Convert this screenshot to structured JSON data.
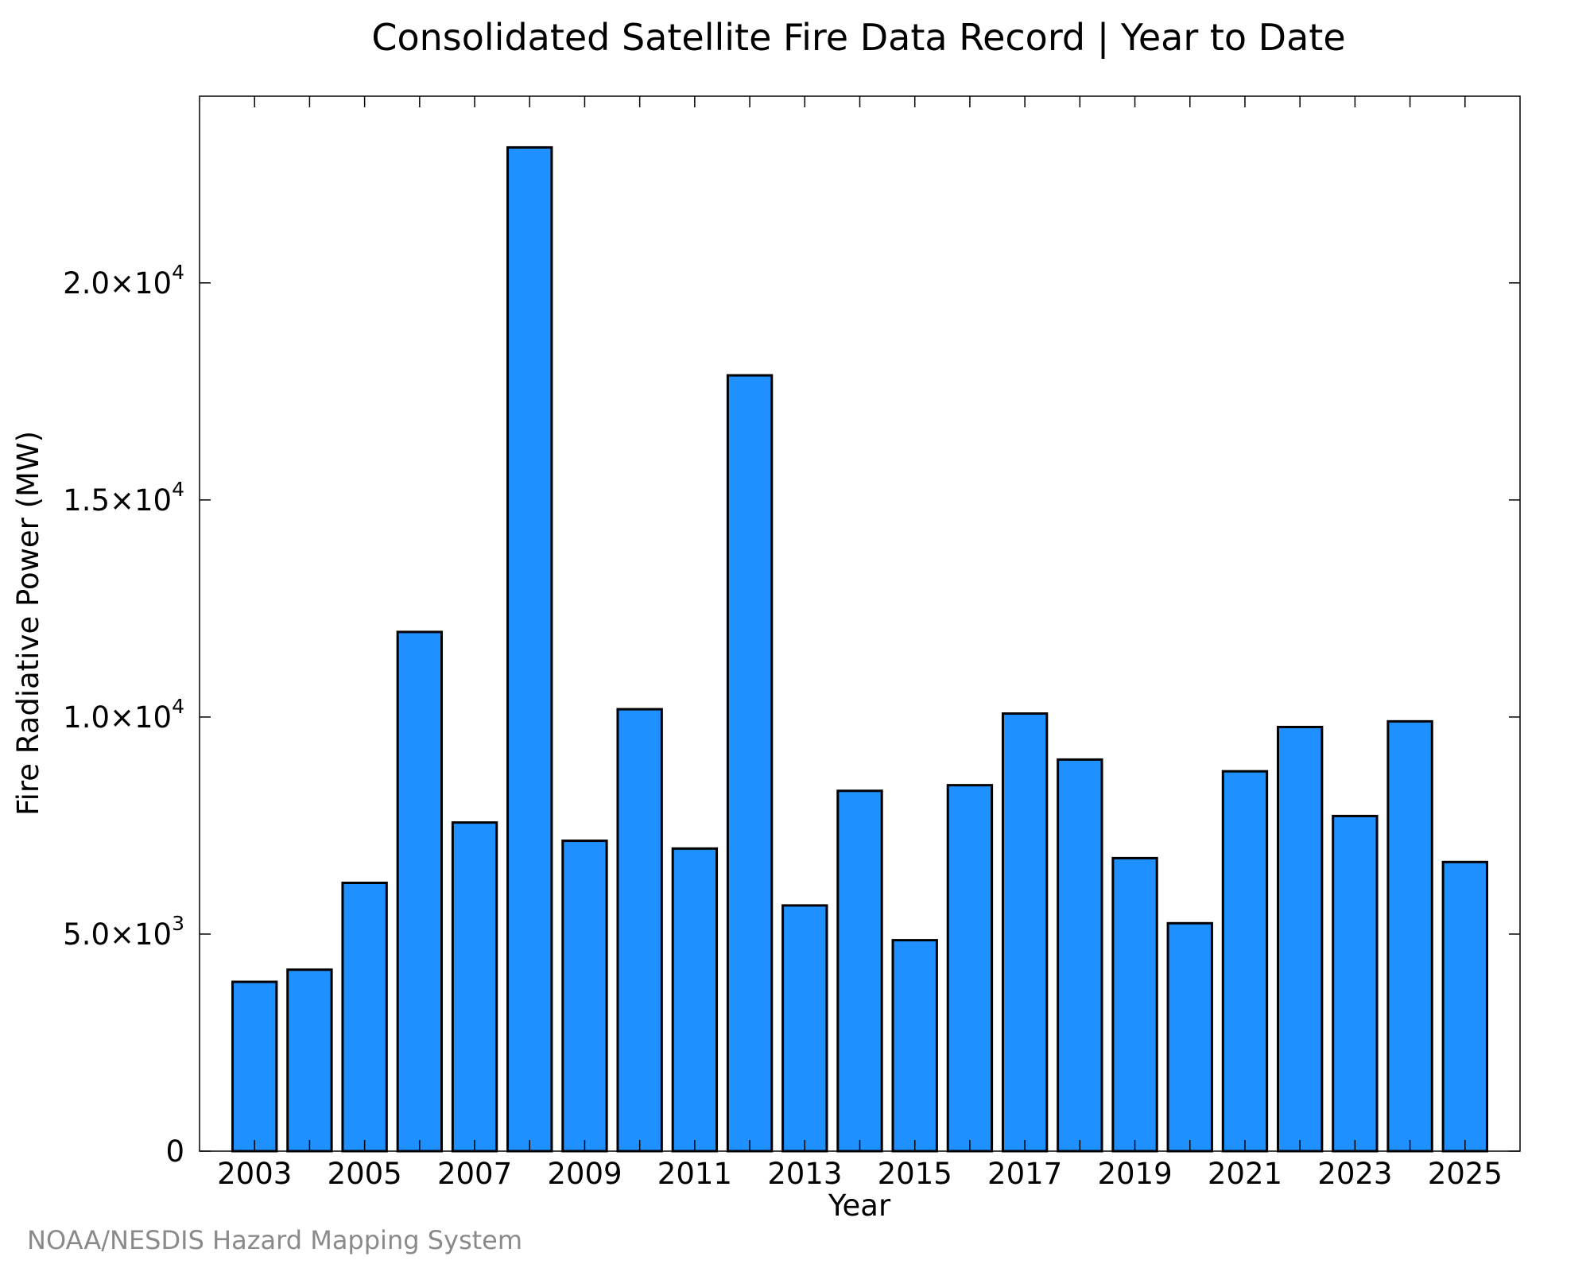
{
  "chart_data": {
    "type": "bar",
    "title": "Consolidated Satellite Fire Data Record | Year to Date",
    "xlabel": "Year",
    "ylabel": "Fire Radiative Power (MW)",
    "categories": [
      "2003",
      "2004",
      "2005",
      "2006",
      "2007",
      "2008",
      "2009",
      "2010",
      "2011",
      "2012",
      "2013",
      "2014",
      "2015",
      "2016",
      "2017",
      "2018",
      "2019",
      "2020",
      "2021",
      "2022",
      "2023",
      "2024",
      "2025"
    ],
    "values": [
      3900,
      4180,
      6180,
      11960,
      7570,
      23120,
      7150,
      10180,
      6970,
      17870,
      5660,
      8300,
      4860,
      8430,
      10080,
      9020,
      6750,
      5250,
      8750,
      9770,
      7720,
      9900,
      6660
    ],
    "x_tick_labels": [
      "2003",
      "2005",
      "2007",
      "2009",
      "2011",
      "2013",
      "2015",
      "2017",
      "2019",
      "2021",
      "2023",
      "2025"
    ],
    "y_ticks": [
      {
        "value": 0,
        "mantissa": "0",
        "exp": ""
      },
      {
        "value": 5000,
        "mantissa": "5.0×10",
        "exp": "3"
      },
      {
        "value": 10000,
        "mantissa": "1.0×10",
        "exp": "4"
      },
      {
        "value": 15000,
        "mantissa": "1.5×10",
        "exp": "4"
      },
      {
        "value": 20000,
        "mantissa": "2.0×10",
        "exp": "4"
      }
    ],
    "ylim": [
      0,
      24300
    ],
    "grid": false,
    "bar_color": "#1e90ff",
    "edge_color": "#000000"
  },
  "footer": "NOAA/NESDIS Hazard Mapping System"
}
